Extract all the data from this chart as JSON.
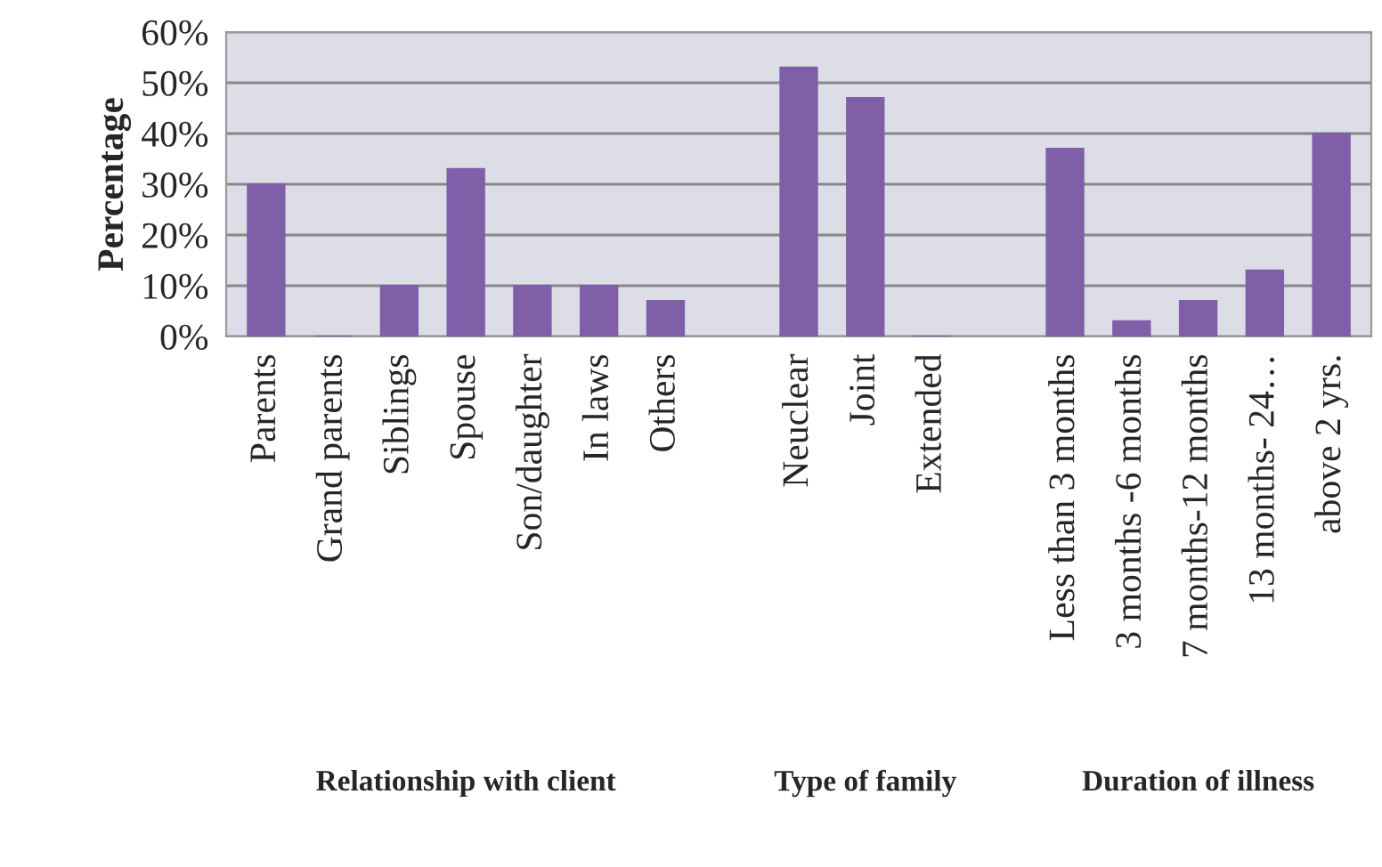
{
  "chart_data": {
    "type": "bar",
    "ylabel": "Percentage",
    "categories": [
      "Parents",
      "Grand parents",
      "Siblings",
      "Spouse",
      "Son/daughter",
      "In laws",
      "Others",
      null,
      "Neuclear",
      "Joint",
      "Extended",
      null,
      "Less than 3 months",
      "3 months -6 months",
      "7 months-12 months",
      "13 months- 24…",
      "above 2 yrs."
    ],
    "values": [
      30,
      0,
      10,
      33,
      10,
      10,
      7,
      null,
      53,
      47,
      0,
      null,
      37,
      3,
      7,
      13,
      40
    ],
    "color": "#7f5fa8",
    "ylim": [
      0,
      60
    ],
    "yticks": [
      {
        "value": 0,
        "label": "0%"
      },
      {
        "value": 10,
        "label": "10%"
      },
      {
        "value": 20,
        "label": "20%"
      },
      {
        "value": 30,
        "label": "30%"
      },
      {
        "value": 40,
        "label": "40%"
      },
      {
        "value": 50,
        "label": "50%"
      },
      {
        "value": 60,
        "label": "60%"
      }
    ],
    "grid": "y",
    "annotations": [
      "Relationship with client",
      "Type of family",
      "Duration of illness"
    ]
  }
}
